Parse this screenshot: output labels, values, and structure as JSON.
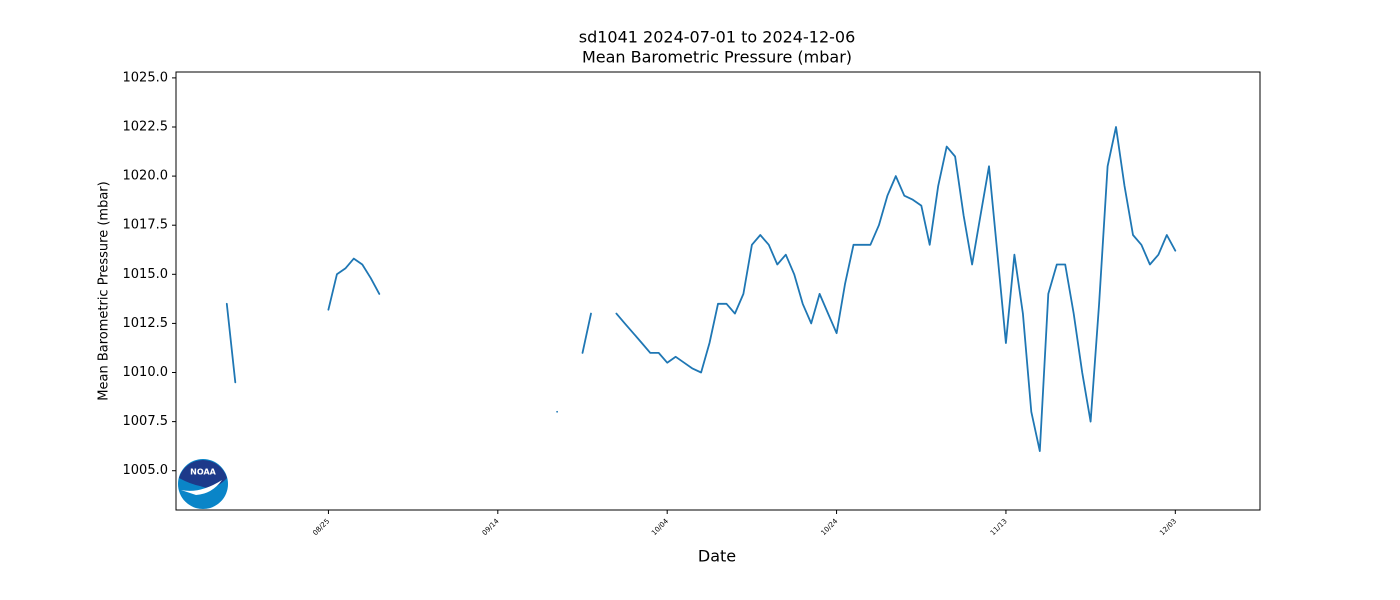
{
  "chart_data": {
    "type": "line",
    "title": "sd1041 2024-07-01 to 2024-12-06",
    "subtitle": " Mean Barometric Pressure (mbar)",
    "x_label": "Date",
    "y_label": "Mean Barometric Pressure (mbar)",
    "logo": "NOAA",
    "x": [
      "08/13",
      "08/14",
      null,
      "08/25",
      "08/26",
      "08/27",
      "08/28",
      "08/29",
      "08/30",
      "08/31",
      null,
      "09/21",
      null,
      "09/24",
      "09/25",
      null,
      "09/28",
      "09/29",
      "09/30",
      "10/01",
      "10/02",
      "10/03",
      "10/04",
      "10/05",
      "10/06",
      "10/07",
      "10/08",
      "10/09",
      "10/10",
      "10/11",
      "10/12",
      "10/13",
      "10/14",
      "10/15",
      "10/16",
      "10/17",
      "10/18",
      "10/19",
      "10/20",
      "10/21",
      "10/22",
      "10/23",
      "10/24",
      "10/25",
      "10/26",
      "10/27",
      "10/28",
      "10/29",
      "10/30",
      "10/31",
      "11/01",
      "11/02",
      "11/03",
      "11/04",
      "11/05",
      "11/06",
      "11/07",
      "11/08",
      "11/09",
      "11/10",
      "11/11",
      "11/12",
      "11/13",
      "11/14",
      "11/15",
      "11/16",
      "11/17",
      "11/18",
      "11/19",
      "11/20",
      "11/21",
      "11/22",
      "11/23",
      "11/24",
      "11/25",
      "11/26",
      "11/27",
      "11/28",
      "11/29",
      "11/30",
      "12/01",
      "12/02",
      "12/03"
    ],
    "series": [
      {
        "name": "Mean Barometric Pressure (mbar)",
        "color": "#1f77b4",
        "values": [
          1013.5,
          1009.5,
          null,
          1013.2,
          1015,
          1015.3,
          1015.8,
          1015.5,
          1014.8,
          1014,
          null,
          1008,
          null,
          1011,
          1013,
          null,
          1013,
          1012.5,
          1012,
          1011.5,
          1011,
          1011,
          1010.5,
          1010.8,
          1010.5,
          1010.2,
          1010,
          1011.5,
          1013.5,
          1013.5,
          1013,
          1014,
          1016.5,
          1017,
          1016.5,
          1015.5,
          1016,
          1015,
          1013.5,
          1012.5,
          1014,
          1013,
          1012,
          1014.5,
          1016.5,
          1016.5,
          1016.5,
          1017.5,
          1019,
          1020,
          1019,
          1018.8,
          1018.5,
          1016.5,
          1019.5,
          1021.5,
          1021,
          1018,
          1015.5,
          1018,
          1020.5,
          1016,
          1011.5,
          1016,
          1013,
          1008,
          1006,
          1014,
          1015.5,
          1015.5,
          1013,
          1010,
          1007.5,
          1013.5,
          1020.5,
          1022.5,
          1019.5,
          1017,
          1016.5,
          1015.5,
          1016,
          1017,
          1016.2
        ]
      }
    ],
    "xlim": [
      "08/07",
      "12/13"
    ],
    "xticks": [
      "08/25",
      "09/14",
      "10/04",
      "10/24",
      "11/13",
      "12/03"
    ],
    "ylim": [
      1003,
      1025.3
    ],
    "yticks": [
      {
        "value": 1005,
        "label": "1005.0"
      },
      {
        "value": 1007.5,
        "label": "1007.5"
      },
      {
        "value": 1010,
        "label": "1010.0"
      },
      {
        "value": 1012.5,
        "label": "1012.5"
      },
      {
        "value": 1015,
        "label": "1015.0"
      },
      {
        "value": 1017.5,
        "label": "1017.5"
      },
      {
        "value": 1020,
        "label": "1020.0"
      },
      {
        "value": 1022.5,
        "label": "1022.5"
      },
      {
        "value": 1025,
        "label": "1025.0"
      }
    ],
    "grid": false
  }
}
